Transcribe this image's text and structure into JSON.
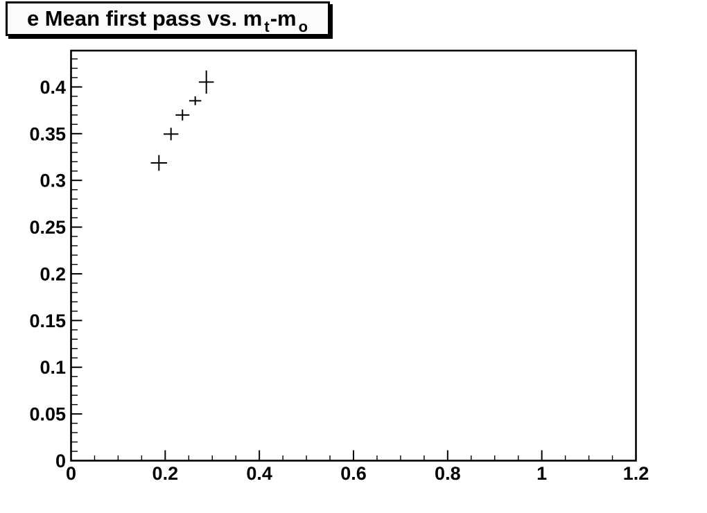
{
  "title": {
    "plain": "e Mean first pass vs. m_t-m_o",
    "segments": [
      {
        "text": "e Mean first pass vs. m",
        "sub": false
      },
      {
        "text": "t",
        "sub": true
      },
      {
        "text": "-m",
        "sub": false
      },
      {
        "text": "o",
        "sub": true
      }
    ]
  },
  "chart_data": {
    "type": "scatter",
    "title": "e Mean first pass vs. m_t-m_o",
    "xlabel": "",
    "ylabel": "",
    "xlim": [
      0,
      1.2
    ],
    "ylim": [
      0,
      0.4389
    ],
    "x_major_ticks": [
      0,
      0.2,
      0.4,
      0.6,
      0.8,
      1,
      1.2
    ],
    "x_tick_labels": [
      "0",
      "0.2",
      "0.4",
      "0.6",
      "0.8",
      "1",
      "1.2"
    ],
    "x_minor_step": 0.05,
    "y_major_ticks": [
      0,
      0.05,
      0.1,
      0.15,
      0.2,
      0.25,
      0.3,
      0.35,
      0.4
    ],
    "y_tick_labels": [
      "0",
      "0.05",
      "0.1",
      "0.15",
      "0.2",
      "0.25",
      "0.3",
      "0.35",
      "0.4"
    ],
    "y_minor_step": 0.01,
    "grid": false,
    "legend": null,
    "marker": "error-bar-cross",
    "points": [
      {
        "x": 0.1867,
        "y": 0.3187,
        "ex": 0.0172,
        "ey": 0.0084
      },
      {
        "x": 0.2123,
        "y": 0.3496,
        "ex": 0.0157,
        "ey": 0.0067
      },
      {
        "x": 0.2367,
        "y": 0.37,
        "ex": 0.0147,
        "ey": 0.0059
      },
      {
        "x": 0.2638,
        "y": 0.3852,
        "ex": 0.0128,
        "ey": 0.0047
      },
      {
        "x": 0.2874,
        "y": 0.4052,
        "ex": 0.0159,
        "ey": 0.0124
      }
    ],
    "colors": {
      "marker": "#000000",
      "frame": "#000000",
      "background": "#ffffff",
      "title_fill": "#fbfbfb"
    }
  }
}
